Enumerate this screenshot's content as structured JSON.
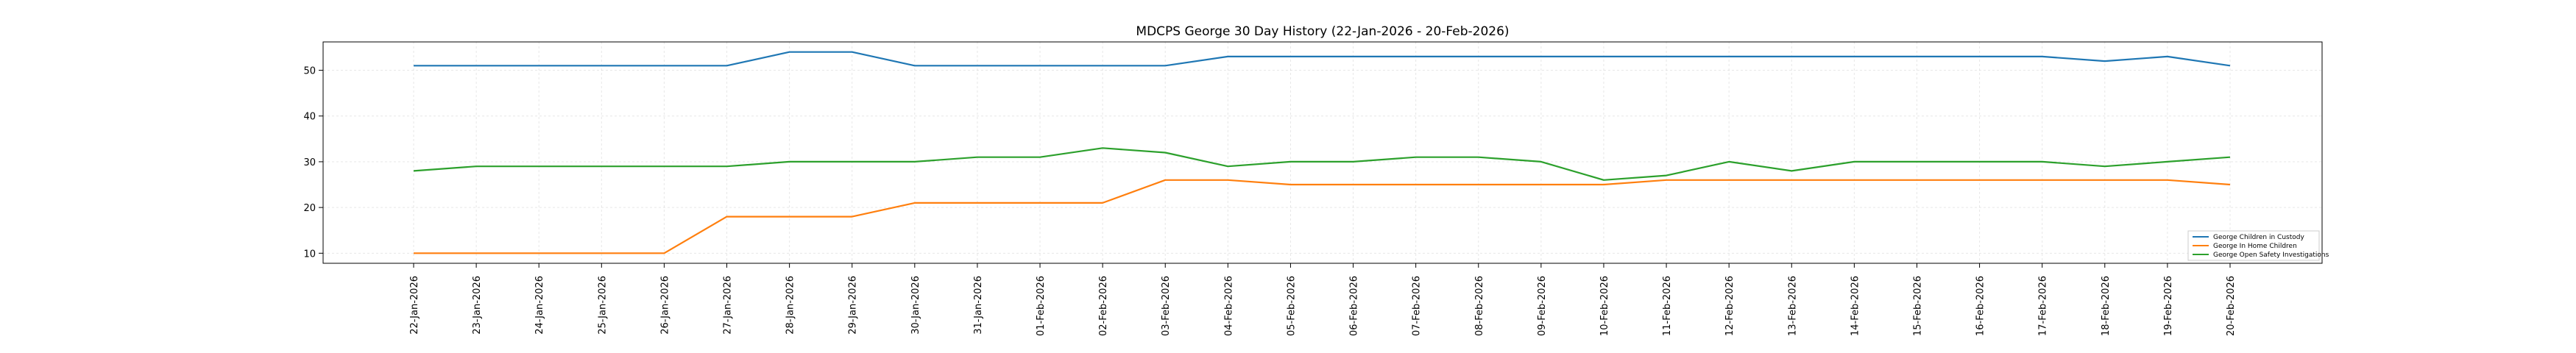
{
  "chart_data": {
    "type": "line",
    "title": "MDCPS George 30 Day History (22-Jan-2026 - 20-Feb-2026)",
    "xlabel": "",
    "ylabel": "",
    "ylim": [
      7.8,
      56.2
    ],
    "yticks": [
      10,
      20,
      30,
      40,
      50
    ],
    "grid": true,
    "legend_position": "bottom-right",
    "categories": [
      "22-Jan-2026",
      "23-Jan-2026",
      "24-Jan-2026",
      "25-Jan-2026",
      "26-Jan-2026",
      "27-Jan-2026",
      "28-Jan-2026",
      "29-Jan-2026",
      "30-Jan-2026",
      "31-Jan-2026",
      "01-Feb-2026",
      "02-Feb-2026",
      "03-Feb-2026",
      "04-Feb-2026",
      "05-Feb-2026",
      "06-Feb-2026",
      "07-Feb-2026",
      "08-Feb-2026",
      "09-Feb-2026",
      "10-Feb-2026",
      "11-Feb-2026",
      "12-Feb-2026",
      "13-Feb-2026",
      "14-Feb-2026",
      "15-Feb-2026",
      "16-Feb-2026",
      "17-Feb-2026",
      "18-Feb-2026",
      "19-Feb-2026",
      "20-Feb-2026"
    ],
    "series": [
      {
        "name": "George Children in Custody",
        "color": "#1f77b4",
        "values": [
          51,
          51,
          51,
          51,
          51,
          51,
          54,
          54,
          51,
          51,
          51,
          51,
          51,
          53,
          53,
          53,
          53,
          53,
          53,
          53,
          53,
          53,
          53,
          53,
          53,
          53,
          53,
          52,
          53,
          51
        ]
      },
      {
        "name": "George In Home Children",
        "color": "#ff7f0e",
        "values": [
          10,
          10,
          10,
          10,
          10,
          18,
          18,
          18,
          21,
          21,
          21,
          21,
          26,
          26,
          25,
          25,
          25,
          25,
          25,
          25,
          26,
          26,
          26,
          26,
          26,
          26,
          26,
          26,
          26,
          25
        ]
      },
      {
        "name": "George Open Safety Investigations",
        "color": "#2ca02c",
        "values": [
          28,
          29,
          29,
          29,
          29,
          29,
          30,
          30,
          30,
          31,
          31,
          33,
          32,
          29,
          30,
          30,
          31,
          31,
          30,
          26,
          27,
          30,
          28,
          30,
          30,
          30,
          30,
          29,
          30,
          31
        ]
      }
    ]
  }
}
